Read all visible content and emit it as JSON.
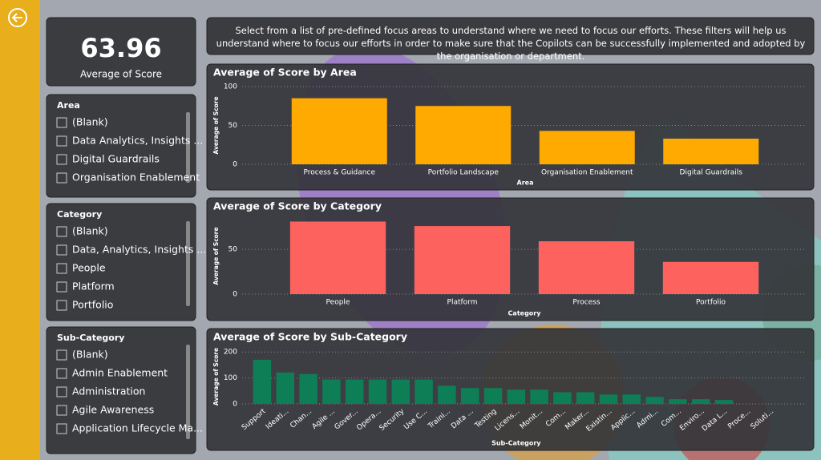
{
  "kpi": {
    "value": "63.96",
    "label": "Average of Score"
  },
  "description": "Select from a list of pre-defined focus areas to understand where we need to focus our efforts. These filters will help us understand where to focus our efforts in order to make sure that the Copilots can be successfully implemented and adopted by the organisation or department.",
  "filters": [
    {
      "title": "Area",
      "items": [
        "(Blank)",
        "Data Analytics, Insights ...",
        "Digital Guardrails",
        "Organisation Enablement"
      ]
    },
    {
      "title": "Category",
      "items": [
        "(Blank)",
        "Data, Analytics, Insights ...",
        "People",
        "Platform",
        "Portfolio"
      ]
    },
    {
      "title": "Sub-Category",
      "items": [
        "(Blank)",
        "Admin Enablement",
        "Administration",
        "Agile Awareness",
        "Application Lifecycle Ma..."
      ]
    }
  ],
  "chart_data": [
    {
      "type": "bar",
      "title": "Average of Score by Area",
      "x_label": "Area",
      "y_label": "Average of Score",
      "color": "#ffaa00",
      "categories": [
        "Process & Guidance",
        "Portfolio Landscape",
        "Organisation Enablement",
        "Digital Guardrails"
      ],
      "values": [
        85,
        75,
        43,
        33
      ],
      "ylim": [
        0,
        100
      ],
      "yticks": [
        0,
        50,
        100
      ],
      "grid": true
    },
    {
      "type": "bar",
      "title": "Average of Score by Category",
      "x_label": "Category",
      "y_label": "Average of Score",
      "color": "#fd625e",
      "categories": [
        "People",
        "Platform",
        "Process",
        "Portfolio"
      ],
      "values": [
        81,
        76,
        59,
        36
      ],
      "ylim": [
        0,
        85
      ],
      "yticks": [
        0,
        50
      ],
      "grid": true
    },
    {
      "type": "bar",
      "title": "Average of Score by Sub-Category",
      "x_label": "Sub-Category",
      "y_label": "Average of Score",
      "color": "#0e7e57",
      "categories": [
        "Support",
        "Ideati...",
        "Chan...",
        "Agile ...",
        "Gover...",
        "Opera...",
        "Security",
        "Use C...",
        "Traini...",
        "Data ...",
        "Testing",
        "Licens...",
        "Monit...",
        "Com...",
        "Maker...",
        "Existin...",
        "Applic...",
        "Admi...",
        "Com...",
        "Enviro...",
        "Data L...",
        "Proce...",
        "Soluti..."
      ],
      "values": [
        170,
        121,
        115,
        94,
        94,
        94,
        94,
        94,
        70,
        61,
        61,
        55,
        55,
        45,
        45,
        36,
        36,
        27,
        18,
        18,
        15,
        0,
        0
      ],
      "ylim": [
        0,
        210
      ],
      "yticks": [
        0,
        100,
        200
      ],
      "grid": true
    }
  ]
}
